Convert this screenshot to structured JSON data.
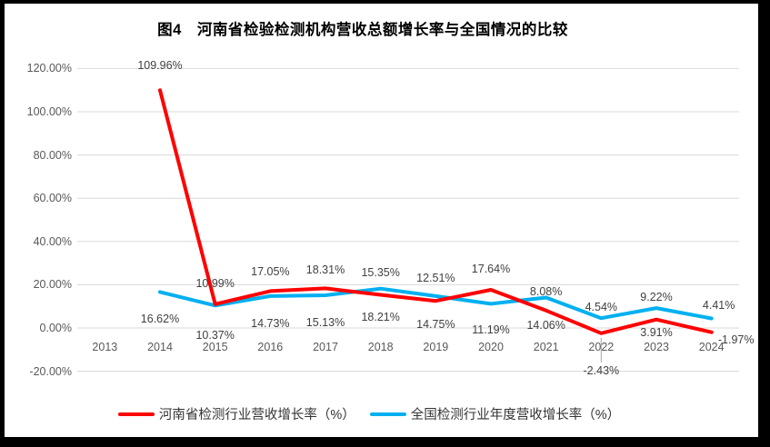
{
  "figure": {
    "title": "图4　河南省检验检测机构营收总额增长率与全国情况的比较"
  },
  "chart_data": {
    "type": "line",
    "title": "图4　河南省检验检测机构营收总额增长率与全国情况的比较",
    "categories": [
      "2013",
      "2014",
      "2015",
      "2016",
      "2017",
      "2018",
      "2019",
      "2020",
      "2021",
      "2022",
      "2023",
      "2024"
    ],
    "series": [
      {
        "name": "河南省检测行业营收增长率（%）",
        "color": "#FF0000",
        "values": [
          null,
          109.96,
          10.99,
          17.05,
          18.31,
          15.35,
          12.51,
          17.64,
          8.08,
          -2.43,
          3.91,
          -1.97
        ],
        "labels": [
          null,
          "109.96%",
          "10.99%",
          "17.05%",
          "18.31%",
          "15.35%",
          "12.51%",
          "17.64%",
          "8.08%",
          "-2.43%",
          "3.91%",
          "-1.97%"
        ]
      },
      {
        "name": "全国检测行业年度营收增长率（%）",
        "color": "#00B0F0",
        "values": [
          null,
          16.62,
          10.37,
          14.73,
          15.13,
          18.21,
          14.75,
          11.19,
          14.06,
          4.54,
          9.22,
          4.41
        ],
        "labels": [
          null,
          "16.62%",
          "10.37%",
          "14.73%",
          "15.13%",
          "18.21%",
          "14.75%",
          "11.19%",
          "14.06%",
          "4.54%",
          "9.22%",
          "4.41%"
        ]
      }
    ],
    "y_axis": {
      "min": -20,
      "max": 120,
      "step": 20,
      "tick_labels": [
        "120.00%",
        "100.00%",
        "80.00%",
        "60.00%",
        "40.00%",
        "20.00%",
        "0.00%",
        "-20.00%"
      ]
    },
    "grid": true,
    "gridline_color": "#D9D9D9",
    "legend_position": "bottom"
  }
}
